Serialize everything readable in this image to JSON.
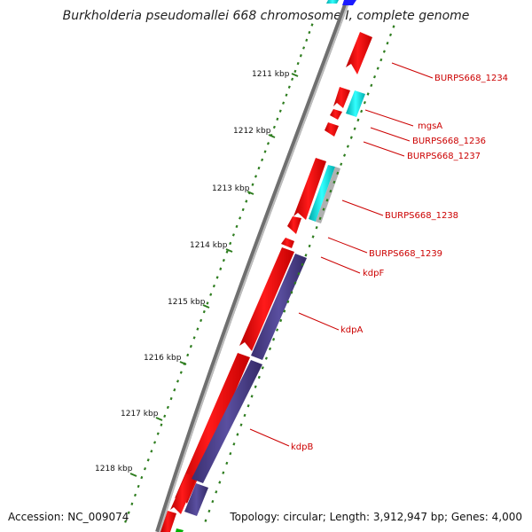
{
  "title": "Burkholderia pseudomallei 668 chromosome I, complete genome",
  "accession": "Accession: NC_009074",
  "topology": "Topology: circular; Length: 3,912,947 bp; Genes: 4,000",
  "kbp_labels": [
    "1211 kbp",
    "1212 kbp",
    "1213 kbp",
    "1214 kbp",
    "1215 kbp",
    "1216 kbp",
    "1217 kbp",
    "1218 kbp"
  ],
  "gene_labels": [
    "BURPS668_1234",
    "mgsA",
    "BURPS668_1236",
    "BURPS668_1237",
    "BURPS668_1238",
    "BURPS668_1239",
    "kdpF",
    "kdpA",
    "kdpB"
  ],
  "colors": {
    "forward_gene": "#ff0000",
    "reverse_gene": "#4b3f8a",
    "rna_gene": "#00d8d8",
    "other_gene": "#b0b0b0",
    "tick": "#2e7d1f",
    "label": "#cc0000",
    "backbone": "#8a8a8a"
  }
}
